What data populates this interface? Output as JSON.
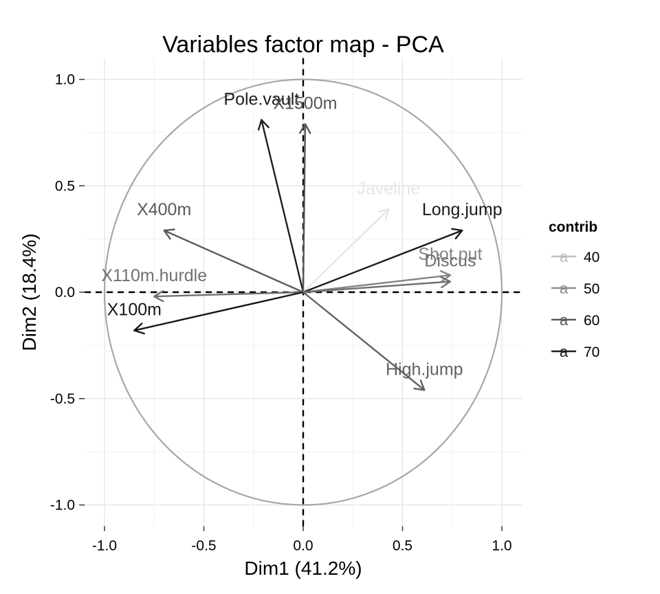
{
  "chart_data": {
    "type": "scatter",
    "title": "Variables factor map - PCA",
    "xlabel": "Dim1 (41.2%)",
    "ylabel": "Dim2 (18.4%)",
    "xlim": [
      -1.1,
      1.1
    ],
    "ylim": [
      -1.1,
      1.1
    ],
    "x_ticks": [
      -1.0,
      -0.5,
      0.0,
      0.5,
      1.0
    ],
    "y_ticks": [
      -1.0,
      -0.5,
      0.0,
      0.5,
      1.0
    ],
    "x_tick_labels": [
      "-1.0",
      "-0.5",
      "0.0",
      "0.5",
      "1.0"
    ],
    "y_tick_labels": [
      "-1.0",
      "-0.5",
      "0.0",
      "0.5",
      "1.0"
    ],
    "grid": true,
    "correlation_circle": true,
    "reference_lines": [
      0,
      0
    ],
    "legend": {
      "title": "contrib",
      "placement": "right",
      "key_glyph": "a",
      "entries": [
        {
          "label": "40",
          "value": 40,
          "color": "#bdbdbd"
        },
        {
          "label": "50",
          "value": 50,
          "color": "#8c8c8c"
        },
        {
          "label": "60",
          "value": 60,
          "color": "#5a5a5a"
        },
        {
          "label": "70",
          "value": 70,
          "color": "#1e1e1e"
        }
      ]
    },
    "series": [
      {
        "name": "Pole.vault",
        "x": -0.21,
        "y": 0.81,
        "contrib": 68,
        "color": "#1e1e1e"
      },
      {
        "name": "X1500m",
        "x": 0.01,
        "y": 0.79,
        "contrib": 60,
        "color": "#555555"
      },
      {
        "name": "Javeline",
        "x": 0.43,
        "y": 0.39,
        "contrib": 36,
        "color": "#e6e6e6"
      },
      {
        "name": "Long.jump",
        "x": 0.8,
        "y": 0.29,
        "contrib": 71,
        "color": "#1a1a1a"
      },
      {
        "name": "Shot.put",
        "x": 0.74,
        "y": 0.08,
        "contrib": 52,
        "color": "#848484"
      },
      {
        "name": "Discus",
        "x": 0.74,
        "y": 0.05,
        "contrib": 55,
        "color": "#6e6e6e"
      },
      {
        "name": "X400m",
        "x": -0.7,
        "y": 0.29,
        "contrib": 60,
        "color": "#5a5a5a"
      },
      {
        "name": "X110m.hurdle",
        "x": -0.75,
        "y": -0.02,
        "contrib": 55,
        "color": "#707070"
      },
      {
        "name": "X100m",
        "x": -0.85,
        "y": -0.18,
        "contrib": 71,
        "color": "#161616"
      },
      {
        "name": "High.jump",
        "x": 0.61,
        "y": -0.46,
        "contrib": 58,
        "color": "#606060"
      }
    ]
  }
}
